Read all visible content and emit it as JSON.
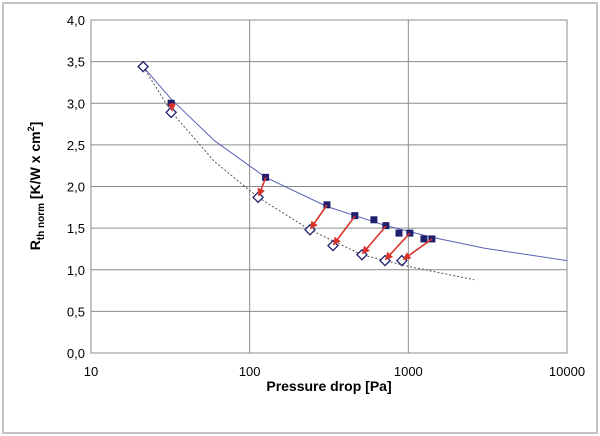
{
  "chart_data": {
    "type": "scatter",
    "xlabel": "Pressure drop [Pa]",
    "ylabel_parts": [
      "R",
      "th norm",
      " [K/W x cm",
      "2",
      "]"
    ],
    "xscale": "log",
    "xlim": [
      10,
      10000
    ],
    "xticks": [
      10,
      100,
      1000,
      10000
    ],
    "ylim": [
      0,
      4
    ],
    "yticks": [
      {
        "value": 0,
        "label": "0,0"
      },
      {
        "value": 0.5,
        "label": "0,5"
      },
      {
        "value": 1,
        "label": "1,0"
      },
      {
        "value": 1.5,
        "label": "1,5"
      },
      {
        "value": 2,
        "label": "2,0"
      },
      {
        "value": 2.5,
        "label": "2,5"
      },
      {
        "value": 3,
        "label": "3,0"
      },
      {
        "value": 3.5,
        "label": "3,5"
      },
      {
        "value": 4,
        "label": "4,0"
      }
    ],
    "grid": true,
    "series": [
      {
        "marker": "square",
        "color": "#1f1f6e",
        "x": [
          32,
          126,
          307,
          460,
          607,
          722,
          873,
          1023,
          1254,
          1408
        ],
        "values": [
          3.0,
          2.11,
          1.78,
          1.65,
          1.6,
          1.53,
          1.44,
          1.44,
          1.37,
          1.37
        ]
      },
      {
        "marker": "diamond",
        "color": "#1f1f6e",
        "x": [
          21.3,
          32,
          113,
          240,
          335,
          510,
          713,
          910
        ],
        "values": [
          3.44,
          2.89,
          1.87,
          1.48,
          1.29,
          1.18,
          1.11,
          1.11
        ]
      },
      {
        "marker": "line",
        "dash": false,
        "color": "#5b63b8",
        "x": [
          21.3,
          32,
          60,
          126,
          307,
          722,
          1408,
          3000,
          10000
        ],
        "values": [
          3.44,
          3.05,
          2.55,
          2.11,
          1.76,
          1.53,
          1.39,
          1.26,
          1.11
        ]
      },
      {
        "marker": "line",
        "dash": true,
        "color": "#555555",
        "x": [
          21.3,
          32,
          60,
          113,
          240,
          510,
          1000,
          2600
        ],
        "values": [
          3.44,
          2.9,
          2.3,
          1.87,
          1.48,
          1.18,
          1.04,
          0.88
        ]
      }
    ]
  }
}
